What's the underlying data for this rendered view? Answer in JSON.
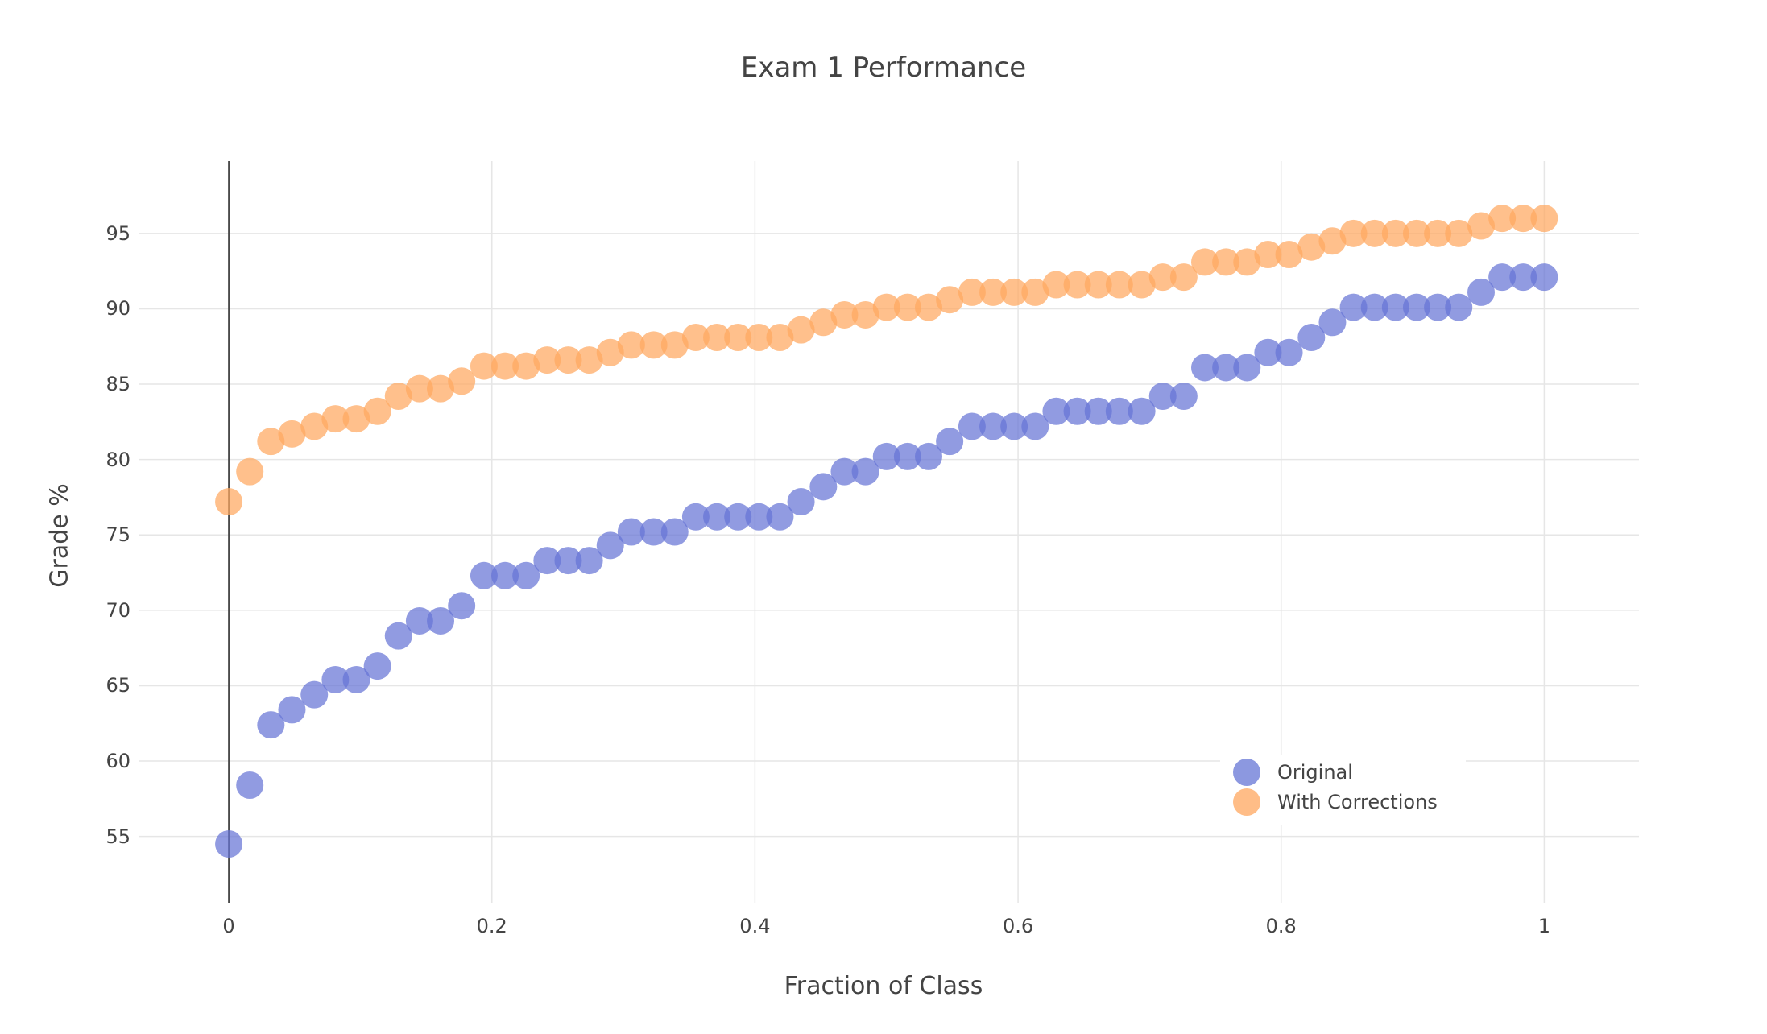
{
  "chart_data": {
    "type": "scatter",
    "title": "Exam 1 Performance",
    "xlabel": "Fraction of Class",
    "ylabel": "Grade %",
    "xlim": [
      -0.068,
      1.072
    ],
    "ylim": [
      50.6,
      99.8
    ],
    "x_ticks": [
      0,
      0.2,
      0.4,
      0.6,
      0.8,
      1
    ],
    "x_tick_labels": [
      "0",
      "0.2",
      "0.4",
      "0.6",
      "0.8",
      "1"
    ],
    "y_ticks": [
      55,
      60,
      65,
      70,
      75,
      80,
      85,
      90,
      95
    ],
    "y_tick_labels": [
      "55",
      "60",
      "65",
      "70",
      "75",
      "80",
      "85",
      "90",
      "95"
    ],
    "grid": true,
    "zero_line_x": true,
    "legend_position": "bottom-right",
    "colors": {
      "original": "#6675d6",
      "with_corrections": "#ffa75f"
    },
    "series": [
      {
        "name": "Original",
        "x": [
          0.0,
          0.016,
          0.032,
          0.048,
          0.065,
          0.081,
          0.097,
          0.113,
          0.129,
          0.145,
          0.161,
          0.177,
          0.194,
          0.21,
          0.226,
          0.242,
          0.258,
          0.274,
          0.29,
          0.306,
          0.323,
          0.339,
          0.355,
          0.371,
          0.387,
          0.403,
          0.419,
          0.435,
          0.452,
          0.468,
          0.484,
          0.5,
          0.516,
          0.532,
          0.548,
          0.565,
          0.581,
          0.597,
          0.613,
          0.629,
          0.645,
          0.661,
          0.677,
          0.694,
          0.71,
          0.726,
          0.742,
          0.758,
          0.774,
          0.79,
          0.806,
          0.823,
          0.839,
          0.855,
          0.871,
          0.887,
          0.903,
          0.919,
          0.935,
          0.952,
          0.968,
          0.984,
          1.0
        ],
        "y": [
          54.5,
          58.4,
          62.4,
          63.4,
          64.4,
          65.4,
          65.4,
          66.3,
          68.3,
          69.3,
          69.3,
          70.3,
          72.3,
          72.3,
          72.3,
          73.3,
          73.3,
          73.3,
          74.3,
          75.2,
          75.2,
          75.2,
          76.2,
          76.2,
          76.2,
          76.2,
          76.2,
          77.2,
          78.2,
          79.2,
          79.2,
          80.2,
          80.2,
          80.2,
          81.2,
          82.2,
          82.2,
          82.2,
          82.2,
          83.2,
          83.2,
          83.2,
          83.2,
          83.2,
          84.2,
          84.2,
          86.1,
          86.1,
          86.1,
          87.1,
          87.1,
          88.1,
          89.1,
          90.1,
          90.1,
          90.1,
          90.1,
          90.1,
          90.1,
          91.1,
          92.1,
          92.1,
          92.1
        ]
      },
      {
        "name": "With Corrections",
        "x": [
          0.0,
          0.016,
          0.032,
          0.048,
          0.065,
          0.081,
          0.097,
          0.113,
          0.129,
          0.145,
          0.161,
          0.177,
          0.194,
          0.21,
          0.226,
          0.242,
          0.258,
          0.274,
          0.29,
          0.306,
          0.323,
          0.339,
          0.355,
          0.371,
          0.387,
          0.403,
          0.419,
          0.435,
          0.452,
          0.468,
          0.484,
          0.5,
          0.516,
          0.532,
          0.548,
          0.565,
          0.581,
          0.597,
          0.613,
          0.629,
          0.645,
          0.661,
          0.677,
          0.694,
          0.71,
          0.726,
          0.742,
          0.758,
          0.774,
          0.79,
          0.806,
          0.823,
          0.839,
          0.855,
          0.871,
          0.887,
          0.903,
          0.919,
          0.935,
          0.952,
          0.968,
          0.984,
          1.0
        ],
        "y": [
          77.2,
          79.2,
          81.2,
          81.7,
          82.2,
          82.7,
          82.7,
          83.2,
          84.2,
          84.7,
          84.7,
          85.2,
          86.2,
          86.2,
          86.2,
          86.6,
          86.6,
          86.6,
          87.1,
          87.6,
          87.6,
          87.6,
          88.1,
          88.1,
          88.1,
          88.1,
          88.1,
          88.6,
          89.1,
          89.6,
          89.6,
          90.1,
          90.1,
          90.1,
          90.6,
          91.1,
          91.1,
          91.1,
          91.1,
          91.6,
          91.6,
          91.6,
          91.6,
          91.6,
          92.1,
          92.1,
          93.1,
          93.1,
          93.1,
          93.6,
          93.6,
          94.1,
          94.5,
          95.0,
          95.0,
          95.0,
          95.0,
          95.0,
          95.0,
          95.5,
          96.0,
          96.0,
          96.0
        ]
      }
    ]
  }
}
